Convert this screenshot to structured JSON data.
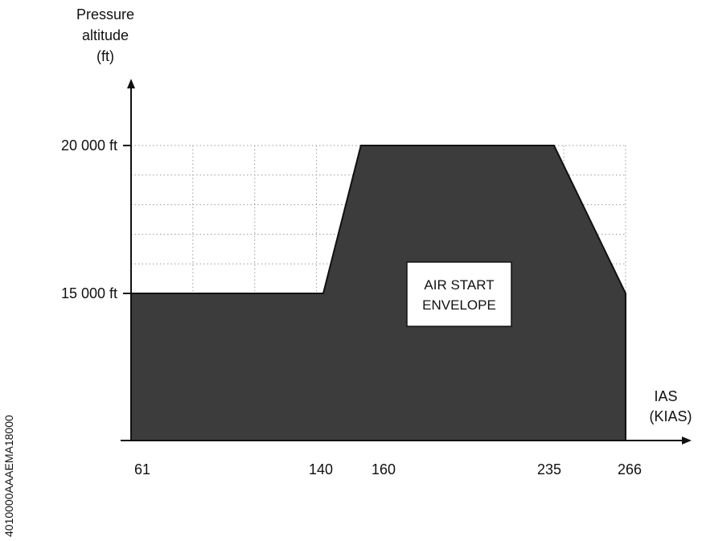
{
  "chart_data": {
    "type": "area",
    "title": "",
    "ylabel": [
      "Pressure",
      "altitude",
      "(ft)"
    ],
    "xlabel": [
      "IAS",
      "(KIAS)"
    ],
    "y_ticks": [
      {
        "value": 15000,
        "label": "15 000 ft"
      },
      {
        "value": 20000,
        "label": "20 000 ft"
      }
    ],
    "x_ticks": [
      {
        "value": 61,
        "label": "61"
      },
      {
        "value": 140,
        "label": "140"
      },
      {
        "value": 160,
        "label": "160"
      },
      {
        "value": 235,
        "label": "235"
      },
      {
        "value": 266,
        "label": "266"
      }
    ],
    "envelope": {
      "label": [
        "AIR START",
        "ENVELOPE"
      ],
      "points": [
        {
          "x": 61,
          "y": 0
        },
        {
          "x": 61,
          "y": 15000
        },
        {
          "x": 140,
          "y": 15000
        },
        {
          "x": 158,
          "y": 20000
        },
        {
          "x": 236,
          "y": 20000
        },
        {
          "x": 266,
          "y": 15000
        },
        {
          "x": 266,
          "y": 0
        }
      ]
    },
    "grid": true,
    "xlim": [
      61,
      266
    ],
    "ylim": [
      0,
      20000
    ]
  },
  "side_code": "4010000AAAEMA18000"
}
